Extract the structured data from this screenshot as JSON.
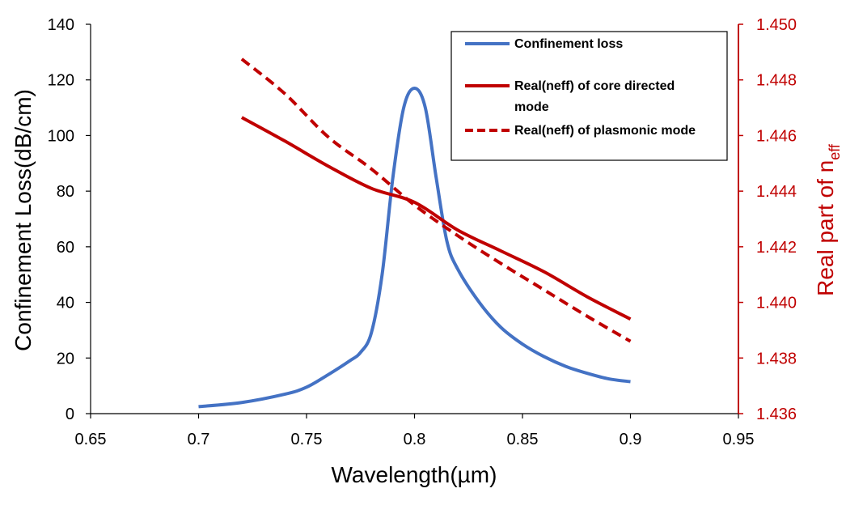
{
  "chart_data": {
    "type": "line",
    "xlabel": "Wavelength(µm)",
    "ylabel": "Confinement  Loss(dB/cm)",
    "y2label_main": "Real part of n",
    "y2label_sub": "eff",
    "xlim": [
      0.65,
      0.95
    ],
    "ylim": [
      0,
      140
    ],
    "y2lim": [
      1.436,
      1.45
    ],
    "x_ticks": [
      "0.65",
      "0.7",
      "0.75",
      "0.8",
      "0.85",
      "0.9",
      "0.95"
    ],
    "y_ticks": [
      "0",
      "20",
      "40",
      "60",
      "80",
      "100",
      "120",
      "140"
    ],
    "y2_ticks": [
      "1.436",
      "1.438",
      "1.440",
      "1.442",
      "1.444",
      "1.446",
      "1.448",
      "1.450"
    ],
    "colors": {
      "loss": "#4472c4",
      "neff": "#c00000",
      "right_axis": "#c00000"
    },
    "series": [
      {
        "name": "Confinement loss",
        "axis": "left",
        "style": "solid",
        "color": "#4472c4",
        "x": [
          0.7,
          0.72,
          0.74,
          0.75,
          0.76,
          0.77,
          0.775,
          0.78,
          0.785,
          0.79,
          0.795,
          0.8,
          0.805,
          0.81,
          0.815,
          0.82,
          0.83,
          0.84,
          0.85,
          0.86,
          0.87,
          0.88,
          0.89,
          0.9
        ],
        "y": [
          2.5,
          4,
          7,
          9.5,
          14,
          19,
          22,
          29,
          50,
          85,
          110,
          117,
          110,
          85,
          62,
          52,
          40,
          31,
          25,
          20.5,
          17,
          14.5,
          12.5,
          11.5
        ]
      },
      {
        "name": "Real(neff) of core directed mode",
        "axis": "right",
        "style": "solid",
        "color": "#c00000",
        "x": [
          0.72,
          0.74,
          0.76,
          0.78,
          0.8,
          0.82,
          0.84,
          0.86,
          0.88,
          0.9
        ],
        "y": [
          1.44665,
          1.4458,
          1.4449,
          1.4441,
          1.4436,
          1.4426,
          1.44185,
          1.4411,
          1.4402,
          1.4394
        ]
      },
      {
        "name": "Real(neff) of plasmonic mode",
        "axis": "right",
        "style": "dashed",
        "color": "#c00000",
        "x": [
          0.72,
          0.74,
          0.76,
          0.78,
          0.8,
          0.82,
          0.84,
          0.86,
          0.88,
          0.9
        ],
        "y": [
          1.44875,
          1.4475,
          1.44595,
          1.4448,
          1.4435,
          1.4424,
          1.4414,
          1.44045,
          1.4395,
          1.4386
        ]
      }
    ],
    "legend": {
      "position": "top-right",
      "entries": [
        {
          "lines": [
            "Confinement loss"
          ]
        },
        {
          "lines": [
            "Real(neff) of core directed",
            "mode"
          ]
        },
        {
          "lines": [
            "Real(neff) of plasmonic mode"
          ]
        }
      ]
    }
  }
}
